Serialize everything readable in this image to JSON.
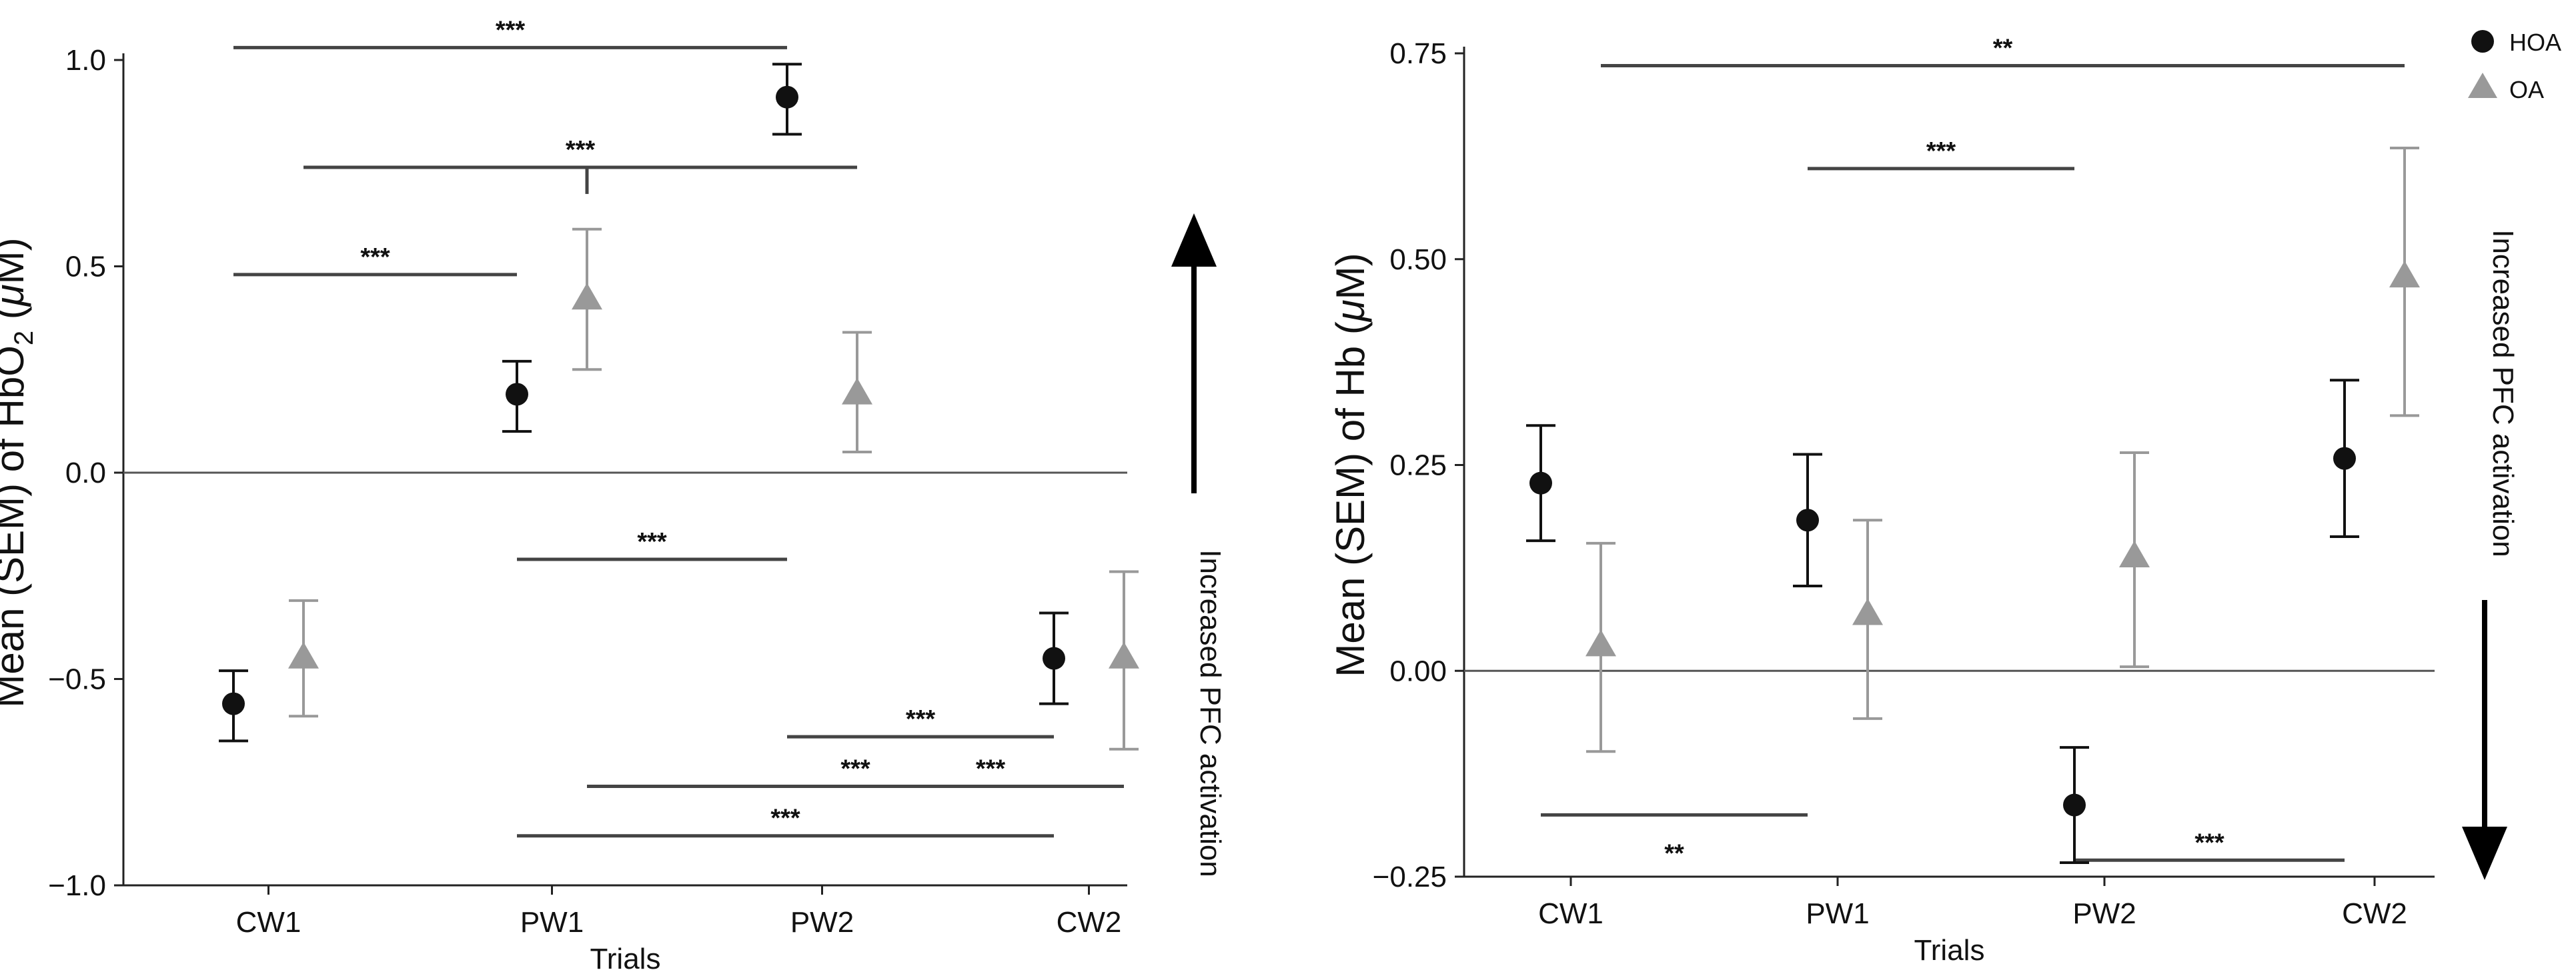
{
  "chart_data": [
    {
      "type": "scatter",
      "title": "",
      "xlabel": "Trials",
      "ylabel_pre": "Mean (SEM) of HbO",
      "ylabel_sub": "2",
      "ylabel_post": " (",
      "ylabel_mu": "μ",
      "ylabel_unit": "M)",
      "categories": [
        "CW1",
        "PW1",
        "PW2",
        "CW2"
      ],
      "ylim": [
        -1.0,
        1.0
      ],
      "yticks": [
        {
          "value": -1.0,
          "label": "−1.0"
        },
        {
          "value": -0.5,
          "label": "−0.5"
        },
        {
          "value": 0.0,
          "label": "0.0"
        },
        {
          "value": 0.5,
          "label": "0.5"
        },
        {
          "value": 1.0,
          "label": "1.0"
        }
      ],
      "grid": false,
      "series": [
        {
          "name": "HOA",
          "marker": "circle",
          "color": "#111111",
          "values": [
            -0.56,
            0.19,
            0.91,
            -0.45
          ],
          "err_low": [
            -0.65,
            0.1,
            0.82,
            -0.56
          ],
          "err_high": [
            -0.48,
            0.27,
            0.99,
            -0.34
          ]
        },
        {
          "name": "OA",
          "marker": "triangle",
          "color": "#999999",
          "values": [
            -0.45,
            0.42,
            0.19,
            -0.45
          ],
          "err_low": [
            -0.59,
            0.25,
            0.05,
            -0.67
          ],
          "err_high": [
            -0.31,
            0.59,
            0.34,
            -0.24
          ]
        }
      ],
      "brackets": [
        {
          "x1": "CW1/HOA",
          "x2": "PW2/HOA",
          "y": 1.03,
          "label": "***"
        },
        {
          "x1": "CW1/OA",
          "x2": "PW2/OA",
          "y": 0.74,
          "label": "***",
          "mid_drop": "PW1/OA"
        },
        {
          "x1": "CW1/HOA",
          "x2": "PW1/HOA",
          "y": 0.48,
          "label": "***"
        },
        {
          "x1": "PW1/HOA",
          "x2": "PW2/HOA",
          "y": -0.21,
          "label": "***"
        },
        {
          "x1": "PW2/HOA",
          "x2": "CW2/HOA",
          "y": -0.64,
          "label": "***"
        },
        {
          "x1": "PW1/OA",
          "x2": "CW2/OA",
          "y": -0.76,
          "label": "***"
        },
        {
          "x1": "PW2/OA",
          "x2": "CW2/OA",
          "y": -0.76,
          "label": "***"
        },
        {
          "x1": "PW1/HOA",
          "x2": "CW2/HOA",
          "y": -0.88,
          "label": "***"
        }
      ],
      "annotation": "Increased PFC activation",
      "arrow_direction": "up"
    },
    {
      "type": "scatter",
      "title": "",
      "xlabel": "Trials",
      "ylabel_pre": "Mean (SEM) of Hb (",
      "ylabel_mu": "μ",
      "ylabel_unit": "M)",
      "categories": [
        "CW1",
        "PW1",
        "PW2",
        "CW2"
      ],
      "ylim": [
        -0.25,
        0.75
      ],
      "yticks": [
        {
          "value": -0.25,
          "label": "−0.25"
        },
        {
          "value": 0.0,
          "label": "0.00"
        },
        {
          "value": 0.25,
          "label": "0.25"
        },
        {
          "value": 0.5,
          "label": "0.50"
        },
        {
          "value": 0.75,
          "label": "0.75"
        }
      ],
      "grid": false,
      "series": [
        {
          "name": "HOA",
          "marker": "circle",
          "color": "#111111",
          "values": [
            0.228,
            0.183,
            -0.163,
            0.258
          ],
          "err_low": [
            0.158,
            0.103,
            -0.233,
            0.163
          ],
          "err_high": [
            0.298,
            0.263,
            -0.093,
            0.353
          ]
        },
        {
          "name": "OA",
          "marker": "triangle",
          "color": "#999999",
          "values": [
            0.03,
            0.068,
            0.138,
            0.478
          ],
          "err_low": [
            -0.098,
            -0.058,
            0.005,
            0.31
          ],
          "err_high": [
            0.155,
            0.183,
            0.265,
            0.635
          ]
        }
      ],
      "brackets": [
        {
          "x1": "CW1/OA",
          "x2": "CW2/OA",
          "y": 0.735,
          "label": "**"
        },
        {
          "x1": "PW1/HOA",
          "x2": "PW2/HOA",
          "y": 0.61,
          "label": "***"
        },
        {
          "x1": "CW1/HOA",
          "x2": "PW1/HOA",
          "y": -0.175,
          "label": "**",
          "below": true
        },
        {
          "x1": "PW2/HOA",
          "x2": "CW2/HOA",
          "y": -0.23,
          "label": "***"
        }
      ],
      "annotation": "Increased PFC activation",
      "arrow_direction": "down",
      "legend": {
        "placement": "top-right",
        "entries": [
          "HOA",
          "OA"
        ]
      }
    }
  ]
}
